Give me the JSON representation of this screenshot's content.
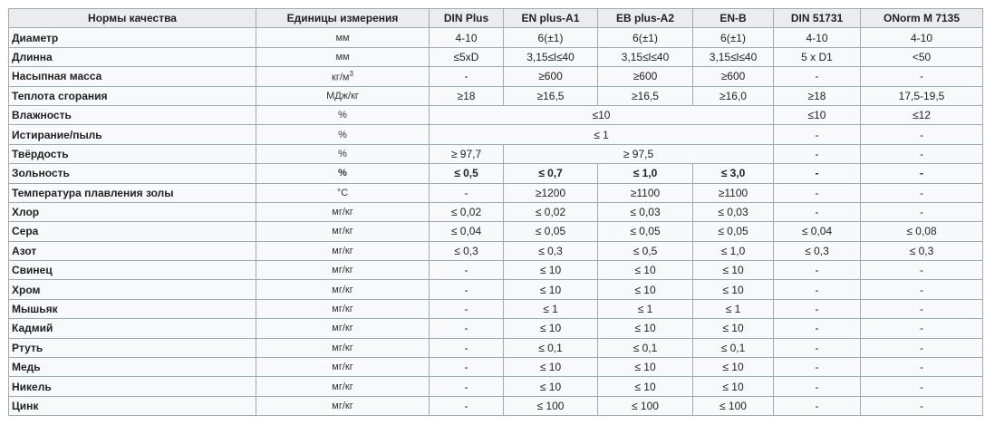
{
  "headers": [
    "Нормы качества",
    "Единицы измерения",
    "DIN Plus",
    "EN plus-A1",
    "EB plus-A2",
    "EN-B",
    "DIN 51731",
    "ONorm M 7135"
  ],
  "rows": [
    {
      "name": "Диаметр",
      "unit": "мм",
      "cells": [
        {
          "t": "4-10"
        },
        {
          "t": "6(±1)"
        },
        {
          "t": "6(±1)"
        },
        {
          "t": "6(±1)"
        },
        {
          "t": "4-10"
        },
        {
          "t": "4-10"
        }
      ]
    },
    {
      "name": "Длинна",
      "unit": "мм",
      "cells": [
        {
          "t": "≤5xD"
        },
        {
          "t": "3,15≤l≤40"
        },
        {
          "t": "3,15≤l≤40"
        },
        {
          "t": "3,15≤l≤40"
        },
        {
          "t": "5 x D1"
        },
        {
          "t": "<50"
        }
      ]
    },
    {
      "name": "Насыпная масса",
      "unit": "кг/м",
      "unit_sup": "3",
      "cells": [
        {
          "t": "-"
        },
        {
          "t": "≥600"
        },
        {
          "t": "≥600"
        },
        {
          "t": "≥600"
        },
        {
          "t": "-"
        },
        {
          "t": "-"
        }
      ]
    },
    {
      "name": "Теплота сгорания",
      "unit": "МДж/кг",
      "cells": [
        {
          "t": "≥18"
        },
        {
          "t": "≥16,5"
        },
        {
          "t": "≥16,5"
        },
        {
          "t": "≥16,0"
        },
        {
          "t": "≥18"
        },
        {
          "t": "17,5-19,5"
        }
      ]
    },
    {
      "name": "Влажность",
      "unit": "%",
      "cells": [
        {
          "t": "≤10",
          "span": 4
        },
        {
          "t": "≤10"
        },
        {
          "t": "≤12"
        }
      ]
    },
    {
      "name": "Истирание/пыль",
      "unit": "%",
      "cells": [
        {
          "t": "≤ 1",
          "span": 4
        },
        {
          "t": "-"
        },
        {
          "t": "-"
        }
      ]
    },
    {
      "name": "Твёрдость",
      "unit": "%",
      "cells": [
        {
          "t": "≥ 97,7"
        },
        {
          "t": "≥ 97,5",
          "span": 3
        },
        {
          "t": "-"
        },
        {
          "t": "-"
        }
      ]
    },
    {
      "name": "Зольность",
      "unit": "%",
      "bold": true,
      "cells": [
        {
          "t": "≤ 0,5"
        },
        {
          "t": "≤ 0,7"
        },
        {
          "t": "≤ 1,0"
        },
        {
          "t": "≤ 3,0"
        },
        {
          "t": "-"
        },
        {
          "t": "-"
        }
      ]
    },
    {
      "name": "Температура плавления золы",
      "unit": "°C",
      "cells": [
        {
          "t": "-"
        },
        {
          "t": "≥1200"
        },
        {
          "t": "≥1100"
        },
        {
          "t": "≥1100"
        },
        {
          "t": "-"
        },
        {
          "t": "-"
        }
      ]
    },
    {
      "name": "Хлор",
      "unit": "мг/кг",
      "cells": [
        {
          "t": "≤ 0,02"
        },
        {
          "t": "≤ 0,02"
        },
        {
          "t": "≤ 0,03"
        },
        {
          "t": "≤ 0,03"
        },
        {
          "t": "-"
        },
        {
          "t": "-"
        }
      ]
    },
    {
      "name": "Сера",
      "unit": "мг/кг",
      "cells": [
        {
          "t": "≤ 0,04"
        },
        {
          "t": "≤ 0,05"
        },
        {
          "t": "≤ 0,05"
        },
        {
          "t": "≤ 0,05"
        },
        {
          "t": "≤ 0,04"
        },
        {
          "t": "≤ 0,08"
        }
      ]
    },
    {
      "name": "Азот",
      "unit": "мг/кг",
      "cells": [
        {
          "t": "≤ 0,3"
        },
        {
          "t": "≤ 0,3"
        },
        {
          "t": "≤ 0,5"
        },
        {
          "t": "≤ 1,0"
        },
        {
          "t": "≤ 0,3"
        },
        {
          "t": "≤ 0,3"
        }
      ]
    },
    {
      "name": "Свинец",
      "unit": "мг/кг",
      "cells": [
        {
          "t": "-"
        },
        {
          "t": "≤ 10"
        },
        {
          "t": "≤ 10"
        },
        {
          "t": "≤ 10"
        },
        {
          "t": "-"
        },
        {
          "t": "-"
        }
      ]
    },
    {
      "name": "Хром",
      "unit": "мг/кг",
      "cells": [
        {
          "t": "-"
        },
        {
          "t": "≤ 10"
        },
        {
          "t": "≤ 10"
        },
        {
          "t": "≤ 10"
        },
        {
          "t": "-"
        },
        {
          "t": "-"
        }
      ]
    },
    {
      "name": "Мышьяк",
      "unit": "мг/кг",
      "cells": [
        {
          "t": "-"
        },
        {
          "t": "≤ 1"
        },
        {
          "t": "≤ 1"
        },
        {
          "t": "≤ 1"
        },
        {
          "t": "-"
        },
        {
          "t": "-"
        }
      ]
    },
    {
      "name": "Кадмий",
      "unit": "мг/кг",
      "cells": [
        {
          "t": "-"
        },
        {
          "t": "≤ 10"
        },
        {
          "t": "≤ 10"
        },
        {
          "t": "≤ 10"
        },
        {
          "t": "-"
        },
        {
          "t": "-"
        }
      ]
    },
    {
      "name": "Ртуть",
      "unit": "мг/кг",
      "cells": [
        {
          "t": "-"
        },
        {
          "t": "≤ 0,1"
        },
        {
          "t": "≤ 0,1"
        },
        {
          "t": "≤ 0,1"
        },
        {
          "t": "-"
        },
        {
          "t": "-"
        }
      ]
    },
    {
      "name": "Медь",
      "unit": "мг/кг",
      "cells": [
        {
          "t": "-"
        },
        {
          "t": "≤ 10"
        },
        {
          "t": "≤ 10"
        },
        {
          "t": "≤ 10"
        },
        {
          "t": "-"
        },
        {
          "t": "-"
        }
      ]
    },
    {
      "name": "Никель",
      "unit": "мг/кг",
      "cells": [
        {
          "t": "-"
        },
        {
          "t": "≤ 10"
        },
        {
          "t": "≤ 10"
        },
        {
          "t": "≤ 10"
        },
        {
          "t": "-"
        },
        {
          "t": "-"
        }
      ]
    },
    {
      "name": "Цинк",
      "unit": "мг/кг",
      "cells": [
        {
          "t": "-"
        },
        {
          "t": "≤ 100"
        },
        {
          "t": "≤ 100"
        },
        {
          "t": "≤ 100"
        },
        {
          "t": "-"
        },
        {
          "t": "-"
        }
      ]
    }
  ]
}
